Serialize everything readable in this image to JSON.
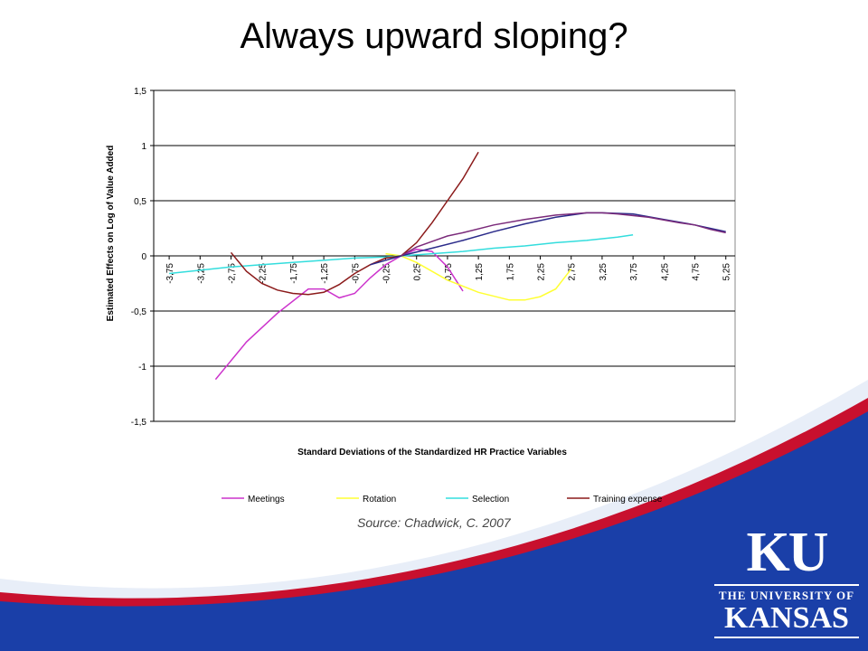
{
  "slide": {
    "title": "Always upward sloping?",
    "source": "Source: Chadwick, C. 2007"
  },
  "logo": {
    "mark": "KU",
    "line1": "THE UNIVERSITY OF",
    "line2": "KANSAS",
    "colors": {
      "blue": "#1a3fa8",
      "red": "#c8102e",
      "light_blue": "#e8eef8"
    }
  },
  "chart_data": {
    "type": "line",
    "title": "",
    "xlabel": "Standard Deviations of the Standardized HR Practice Variables",
    "ylabel": "Estimated Effects on Log of Value Added",
    "ylim": [
      -1.5,
      1.5
    ],
    "y_ticks": [
      "1,5",
      "1",
      "0,5",
      "0",
      "-0,5",
      "-1",
      "-1,5"
    ],
    "x_tick_labels": [
      "-3,75",
      "-3,25",
      "-2,75",
      "-2,25",
      "-1,75",
      "-1,25",
      "-0,75",
      "-0,25",
      "0,25",
      "0,75",
      "1,25",
      "1,75",
      "2,25",
      "2,75",
      "3,25",
      "3,75",
      "4,25",
      "4,75",
      "5,25"
    ],
    "x_ticks": [
      -3.75,
      -3.25,
      -2.75,
      -2.25,
      -1.75,
      -1.25,
      -0.75,
      -0.25,
      0.25,
      0.75,
      1.25,
      1.75,
      2.25,
      2.75,
      3.25,
      3.75,
      4.25,
      4.75,
      5.25
    ],
    "xlim": [
      -4.0,
      5.4
    ],
    "grid": "horizontal",
    "legend_position": "bottom",
    "series": [
      {
        "name": "Meetings",
        "color": "#cc33cc",
        "points": [
          [
            -3.0,
            -1.12
          ],
          [
            -2.5,
            -0.78
          ],
          [
            -2.0,
            -0.52
          ],
          [
            -1.5,
            -0.3
          ],
          [
            -1.25,
            -0.3
          ],
          [
            -1.0,
            -0.38
          ],
          [
            -0.75,
            -0.34
          ],
          [
            -0.5,
            -0.2
          ],
          [
            -0.25,
            -0.08
          ],
          [
            0.0,
            0.0
          ],
          [
            0.25,
            0.06
          ],
          [
            0.5,
            0.04
          ],
          [
            0.75,
            -0.1
          ],
          [
            1.0,
            -0.32
          ]
        ]
      },
      {
        "name": "Rotation",
        "color": "#ffff33",
        "points": [
          [
            -0.25,
            0.02
          ],
          [
            0.0,
            0.0
          ],
          [
            0.25,
            -0.06
          ],
          [
            0.75,
            -0.22
          ],
          [
            1.25,
            -0.33
          ],
          [
            1.75,
            -0.4
          ],
          [
            2.0,
            -0.4
          ],
          [
            2.25,
            -0.37
          ],
          [
            2.5,
            -0.3
          ],
          [
            2.75,
            -0.12
          ]
        ]
      },
      {
        "name": "Selection",
        "color": "#33dddd",
        "points": [
          [
            -3.75,
            -0.16
          ],
          [
            -3.25,
            -0.13
          ],
          [
            -2.75,
            -0.1
          ],
          [
            -2.25,
            -0.08
          ],
          [
            -1.75,
            -0.06
          ],
          [
            -1.25,
            -0.04
          ],
          [
            -0.75,
            -0.02
          ],
          [
            -0.25,
            -0.01
          ],
          [
            0.0,
            0.0
          ],
          [
            0.5,
            0.02
          ],
          [
            1.0,
            0.04
          ],
          [
            1.5,
            0.07
          ],
          [
            2.0,
            0.09
          ],
          [
            2.5,
            0.12
          ],
          [
            3.0,
            0.14
          ],
          [
            3.5,
            0.17
          ],
          [
            3.75,
            0.19
          ]
        ]
      },
      {
        "name": "Training expense",
        "color": "#8b1a1a",
        "points": [
          [
            -2.75,
            0.03
          ],
          [
            -2.5,
            -0.14
          ],
          [
            -2.25,
            -0.25
          ],
          [
            -2.0,
            -0.31
          ],
          [
            -1.75,
            -0.34
          ],
          [
            -1.5,
            -0.35
          ],
          [
            -1.25,
            -0.33
          ],
          [
            -1.0,
            -0.26
          ],
          [
            -0.75,
            -0.16
          ],
          [
            -0.5,
            -0.08
          ],
          [
            -0.25,
            -0.02
          ],
          [
            0.0,
            0.0
          ],
          [
            0.25,
            0.12
          ],
          [
            0.5,
            0.3
          ],
          [
            0.75,
            0.5
          ],
          [
            1.0,
            0.7
          ],
          [
            1.25,
            0.94
          ]
        ]
      },
      {
        "name": "",
        "color": "#2b2b8a",
        "points": [
          [
            -0.5,
            -0.08
          ],
          [
            0.0,
            0.0
          ],
          [
            0.5,
            0.07
          ],
          [
            1.0,
            0.14
          ],
          [
            1.5,
            0.22
          ],
          [
            2.0,
            0.29
          ],
          [
            2.5,
            0.35
          ],
          [
            3.0,
            0.39
          ],
          [
            3.25,
            0.39
          ],
          [
            3.75,
            0.38
          ],
          [
            4.25,
            0.33
          ],
          [
            4.75,
            0.28
          ],
          [
            5.25,
            0.22
          ]
        ]
      },
      {
        "name": "",
        "color": "#7a2a7a",
        "points": [
          [
            0.0,
            0.0
          ],
          [
            0.25,
            0.08
          ],
          [
            0.5,
            0.13
          ],
          [
            0.75,
            0.18
          ],
          [
            1.0,
            0.21
          ],
          [
            1.5,
            0.28
          ],
          [
            2.0,
            0.33
          ],
          [
            2.5,
            0.37
          ],
          [
            3.0,
            0.39
          ],
          [
            3.25,
            0.39
          ],
          [
            3.5,
            0.38
          ],
          [
            4.0,
            0.35
          ],
          [
            4.5,
            0.3
          ],
          [
            4.75,
            0.28
          ],
          [
            5.0,
            0.24
          ],
          [
            5.25,
            0.21
          ]
        ]
      }
    ]
  }
}
